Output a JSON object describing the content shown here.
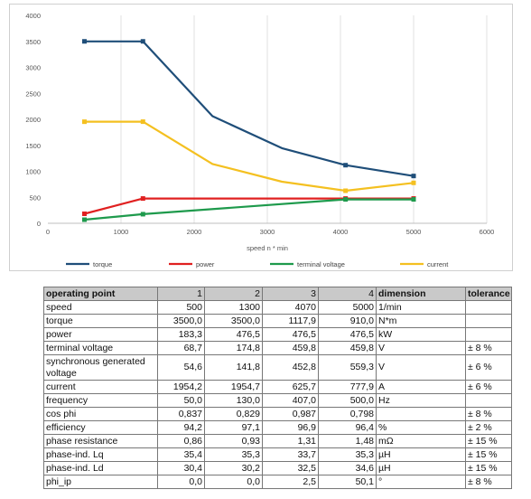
{
  "chart_data": {
    "type": "line",
    "xlabel": "speed n * min",
    "ylabel": "",
    "xlim": [
      0,
      6000
    ],
    "ylim": [
      0,
      4000
    ],
    "x_ticks": [
      0,
      1000,
      2000,
      3000,
      4000,
      5000,
      6000
    ],
    "y_ticks": [
      0,
      500,
      1000,
      1500,
      2000,
      2500,
      3000,
      3500,
      4000
    ],
    "grid": "vertical",
    "legend": "bottom",
    "series": [
      {
        "name": "torque",
        "color": "#1f4e79",
        "x": [
          500,
          1300,
          2250,
          3200,
          4070,
          5000
        ],
        "y": [
          3500,
          3500,
          2060,
          1445,
          1118,
          910
        ],
        "markers": [
          true,
          true,
          false,
          false,
          true,
          true
        ]
      },
      {
        "name": "power",
        "color": "#e02020",
        "x": [
          500,
          1300,
          4070,
          5000
        ],
        "y": [
          183,
          477,
          477,
          477
        ],
        "markers": [
          true,
          true,
          true,
          true
        ]
      },
      {
        "name": "terminal voltage",
        "color": "#1e9a4c",
        "x": [
          500,
          1300,
          4070,
          5000
        ],
        "y": [
          69,
          175,
          460,
          460
        ],
        "markers": [
          true,
          true,
          true,
          true
        ]
      },
      {
        "name": "current",
        "color": "#f4c020",
        "x": [
          500,
          1300,
          2250,
          3200,
          4070,
          5000
        ],
        "y": [
          1954,
          1955,
          1140,
          800,
          626,
          778
        ],
        "markers": [
          true,
          true,
          false,
          false,
          true,
          true
        ]
      }
    ]
  },
  "table": {
    "headers": [
      "operating point",
      "1",
      "2",
      "3",
      "4",
      "dimension",
      "tolerance"
    ],
    "rows": [
      {
        "label": "speed",
        "v": [
          "500",
          "1300",
          "4070",
          "5000"
        ],
        "dim": "1/min",
        "tol": ""
      },
      {
        "label": "torque",
        "v": [
          "3500,0",
          "3500,0",
          "1117,9",
          "910,0"
        ],
        "dim": "N*m",
        "tol": ""
      },
      {
        "label": "power",
        "v": [
          "183,3",
          "476,5",
          "476,5",
          "476,5"
        ],
        "dim": "kW",
        "tol": ""
      },
      {
        "label": "terminal voltage",
        "v": [
          "68,7",
          "174,8",
          "459,8",
          "459,8"
        ],
        "dim": "V",
        "tol": "± 8 %"
      },
      {
        "label": "synchronous generated voltage",
        "v": [
          "54,6",
          "141,8",
          "452,8",
          "559,3"
        ],
        "dim": "V",
        "tol": "± 6 %"
      },
      {
        "label": "current",
        "v": [
          "1954,2",
          "1954,7",
          "625,7",
          "777,9"
        ],
        "dim": "A",
        "tol": "± 6 %"
      },
      {
        "label": "frequency",
        "v": [
          "50,0",
          "130,0",
          "407,0",
          "500,0"
        ],
        "dim": "Hz",
        "tol": ""
      },
      {
        "label": "cos phi",
        "v": [
          "0,837",
          "0,829",
          "0,987",
          "0,798"
        ],
        "dim": "",
        "tol": "± 8 %"
      },
      {
        "label": "efficiency",
        "v": [
          "94,2",
          "97,1",
          "96,9",
          "96,4"
        ],
        "dim": "%",
        "tol": "± 2 %"
      },
      {
        "label": "phase resistance",
        "v": [
          "0,86",
          "0,93",
          "1,31",
          "1,48"
        ],
        "dim": "mΩ",
        "tol": "± 15 %"
      },
      {
        "label": "phase-ind. Lq",
        "v": [
          "35,4",
          "35,3",
          "33,7",
          "35,3"
        ],
        "dim": "µH",
        "tol": "± 15 %"
      },
      {
        "label": "phase-ind. Ld",
        "v": [
          "30,4",
          "30,2",
          "32,5",
          "34,6"
        ],
        "dim": "µH",
        "tol": "± 15 %"
      },
      {
        "label": "phi_ip",
        "v": [
          "0,0",
          "0,0",
          "2,5",
          "50,1"
        ],
        "dim": "°",
        "tol": "± 8 %"
      }
    ]
  }
}
